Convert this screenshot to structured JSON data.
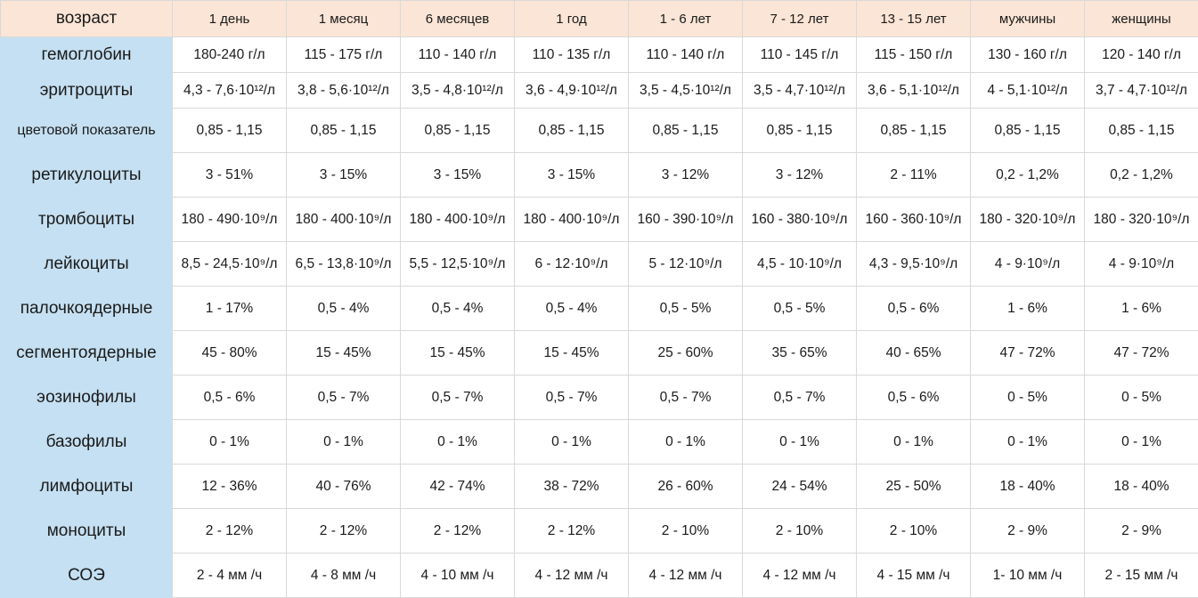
{
  "table": {
    "corner_label": "возраст",
    "columns": [
      "1 день",
      "1 месяц",
      "6 месяцев",
      "1 год",
      "1 - 6 лет",
      "7 - 12 лет",
      "13 - 15 лет",
      "мужчины",
      "женщины"
    ],
    "rows": [
      {
        "label": "гемоглобин",
        "cells": [
          "180-240 г/л",
          "115 - 175 г/л",
          "110 - 140 г/л",
          "110 - 135 г/л",
          "110 - 140 г/л",
          "110 - 145 г/л",
          "115 - 150 г/л",
          "130 - 160 г/л",
          "120 - 140 г/л"
        ]
      },
      {
        "label": "эритроциты",
        "cells": [
          "4,3 - 7,6·10¹²/л",
          "3,8 - 5,6·10¹²/л",
          "3,5 - 4,8·10¹²/л",
          "3,6 - 4,9·10¹²/л",
          "3,5 - 4,5·10¹²/л",
          "3,5 - 4,7·10¹²/л",
          "3,6 - 5,1·10¹²/л",
          "4 - 5,1·10¹²/л",
          "3,7 - 4,7·10¹²/л"
        ]
      },
      {
        "label": "цветовой показатель",
        "cells": [
          "0,85 - 1,15",
          "0,85 - 1,15",
          "0,85 - 1,15",
          "0,85 - 1,15",
          "0,85 - 1,15",
          "0,85 - 1,15",
          "0,85 - 1,15",
          "0,85 - 1,15",
          "0,85 - 1,15"
        ]
      },
      {
        "label": "ретикулоциты",
        "cells": [
          "3 - 51%",
          "3 - 15%",
          "3 - 15%",
          "3 - 15%",
          "3 - 12%",
          "3 - 12%",
          "2 - 11%",
          "0,2 - 1,2%",
          "0,2 - 1,2%"
        ]
      },
      {
        "label": "тромбоциты",
        "cells": [
          "180 - 490·10⁹/л",
          "180 - 400·10⁹/л",
          "180 - 400·10⁹/л",
          "180 - 400·10⁹/л",
          "160 - 390·10⁹/л",
          "160 - 380·10⁹/л",
          "160 - 360·10⁹/л",
          "180 - 320·10⁹/л",
          "180 - 320·10⁹/л"
        ]
      },
      {
        "label": "лейкоциты",
        "cells": [
          "8,5 - 24,5·10⁹/л",
          "6,5 - 13,8·10⁹/л",
          "5,5 - 12,5·10⁹/л",
          "6 - 12·10⁹/л",
          "5 - 12·10⁹/л",
          "4,5 - 10·10⁹/л",
          "4,3 - 9,5·10⁹/л",
          "4 - 9·10⁹/л",
          "4 - 9·10⁹/л"
        ]
      },
      {
        "label": "палочкоядерные",
        "cells": [
          "1 - 17%",
          "0,5 - 4%",
          "0,5 - 4%",
          "0,5 - 4%",
          "0,5 - 5%",
          "0,5 - 5%",
          "0,5 - 6%",
          "1 - 6%",
          "1 - 6%"
        ]
      },
      {
        "label": "сегментоядерные",
        "cells": [
          "45 - 80%",
          "15 - 45%",
          "15 - 45%",
          "15 - 45%",
          "25 - 60%",
          "35 - 65%",
          "40 - 65%",
          "47 - 72%",
          "47 - 72%"
        ]
      },
      {
        "label": "эозинофилы",
        "cells": [
          "0,5 - 6%",
          "0,5 - 7%",
          "0,5 - 7%",
          "0,5 - 7%",
          "0,5 - 7%",
          "0,5 - 7%",
          "0,5 - 6%",
          "0 - 5%",
          "0 - 5%"
        ]
      },
      {
        "label": "базофилы",
        "cells": [
          "0 - 1%",
          "0 - 1%",
          "0 - 1%",
          "0 - 1%",
          "0 - 1%",
          "0 - 1%",
          "0 - 1%",
          "0 - 1%",
          "0 - 1%"
        ]
      },
      {
        "label": "лимфоциты",
        "cells": [
          "12 - 36%",
          "40 - 76%",
          "42 - 74%",
          "38 - 72%",
          "26 - 60%",
          "24 - 54%",
          "25 - 50%",
          "18 - 40%",
          "18 - 40%"
        ]
      },
      {
        "label": "моноциты",
        "cells": [
          "2 - 12%",
          "2 - 12%",
          "2 - 12%",
          "2 - 12%",
          "2 - 10%",
          "2 - 10%",
          "2 - 10%",
          "2 - 9%",
          "2 - 9%"
        ]
      },
      {
        "label": "СОЭ",
        "cells": [
          "2 - 4 мм /ч",
          "4 - 8 мм /ч",
          "4 - 10 мм /ч",
          "4 - 12 мм /ч",
          "4 - 12 мм /ч",
          "4 - 12 мм /ч",
          "4 - 15 мм /ч",
          "1- 10 мм /ч",
          "2 - 15 мм /ч"
        ]
      }
    ]
  }
}
